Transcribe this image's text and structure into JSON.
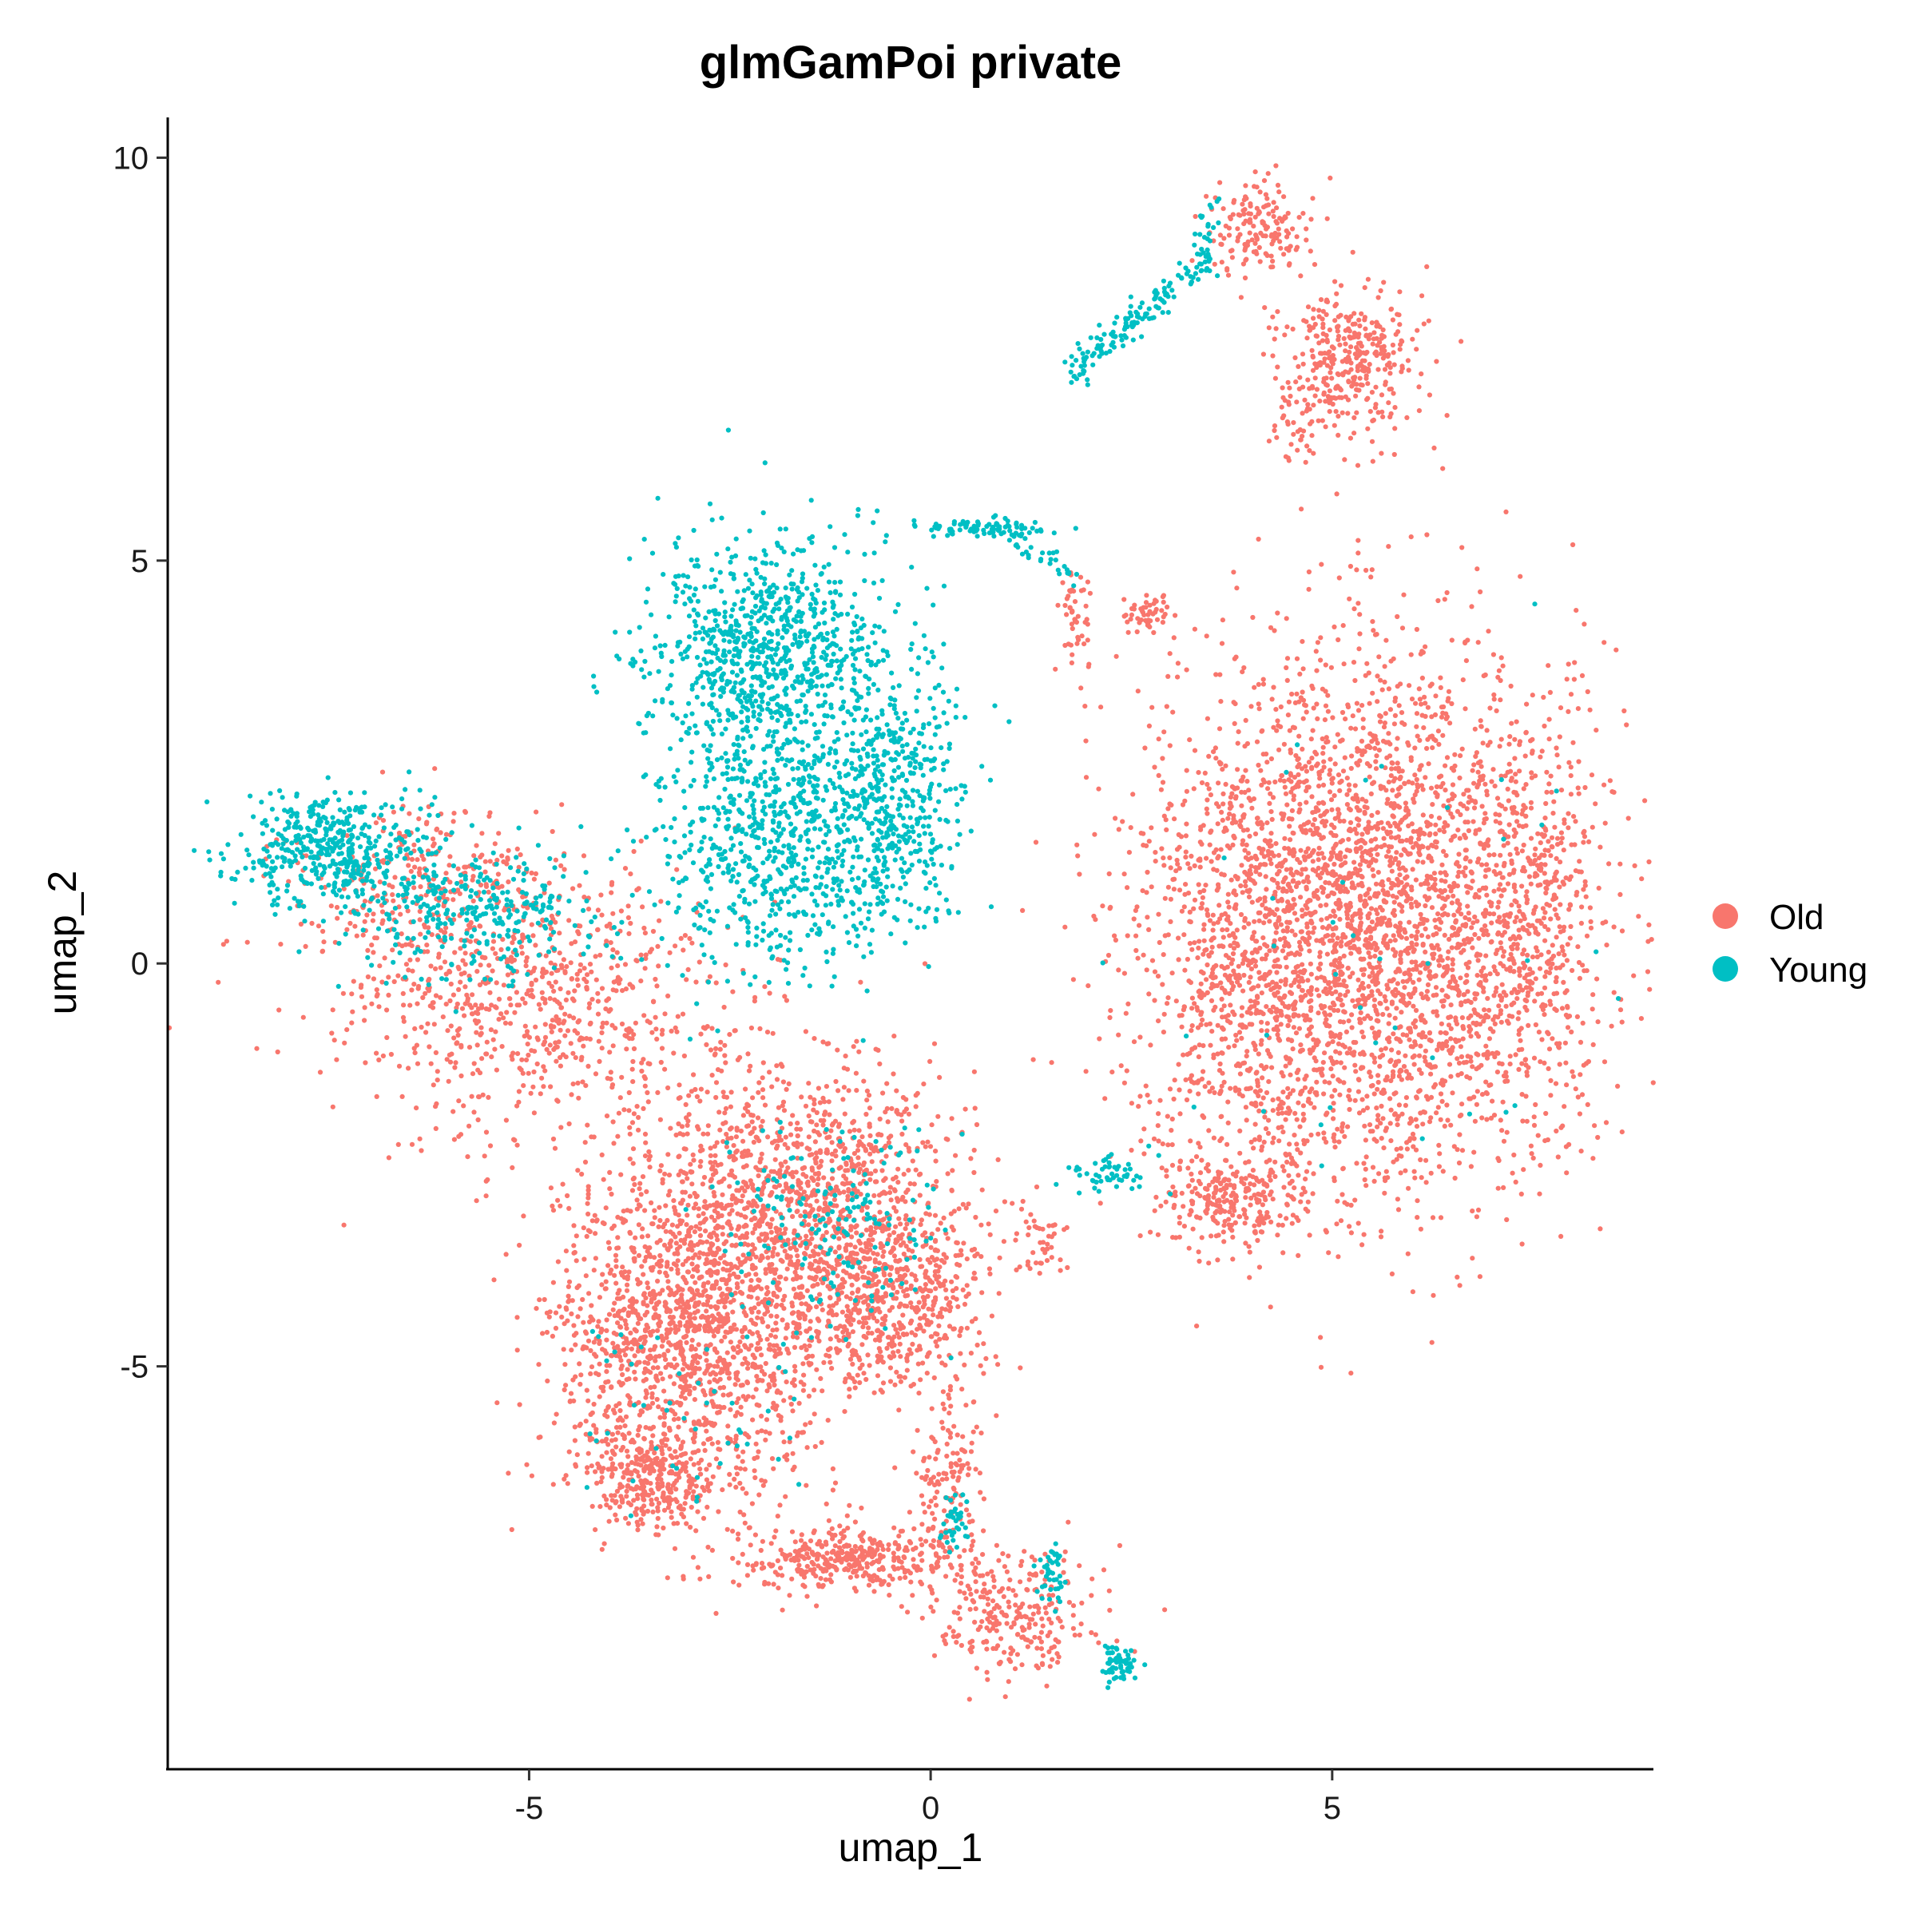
{
  "chart_data": {
    "type": "scatter",
    "title": "glmGamPoi private",
    "xlabel": "umap_1",
    "ylabel": "umap_2",
    "xlim": [
      -9.5,
      9.0
    ],
    "ylim": [
      -10,
      10.5
    ],
    "x_ticks": [
      -5,
      0,
      5
    ],
    "y_ticks": [
      -5,
      0,
      5,
      10
    ],
    "grid": false,
    "legend": {
      "placement": "right"
    },
    "colors": {
      "Old": "#F8766D",
      "Young": "#00BFC4"
    },
    "series": [
      {
        "name": "Old",
        "color": "#F8766D",
        "clusters": [
          {
            "cx": 5.5,
            "cy": 0.5,
            "sx": 1.55,
            "sy": 2.0,
            "n": 3200
          },
          {
            "cx": 7.6,
            "cy": 0.6,
            "sx": 0.45,
            "sy": 1.4,
            "n": 300
          },
          {
            "cx": 4.0,
            "cy": 0.3,
            "sx": 0.9,
            "sy": 1.6,
            "n": 500
          },
          {
            "cx": -3.0,
            "cy": -4.6,
            "sx": 1.0,
            "sy": 1.2,
            "n": 1500
          },
          {
            "cx": -1.6,
            "cy": -3.0,
            "sx": 1.2,
            "sy": 1.0,
            "n": 1200
          },
          {
            "cx": -0.5,
            "cy": -4.2,
            "sx": 0.7,
            "sy": 0.6,
            "n": 500
          },
          {
            "cx": -5.0,
            "cy": -0.5,
            "sx": 1.5,
            "sy": 1.0,
            "n": 800
          },
          {
            "cx": -6.5,
            "cy": 1.0,
            "sx": 1.0,
            "sy": 0.6,
            "n": 250
          },
          {
            "cx": -3.5,
            "cy": -6.4,
            "sx": 0.5,
            "sy": 0.35,
            "n": 300
          },
          {
            "cx": -1.0,
            "cy": -7.4,
            "sx": 0.9,
            "sy": 0.25,
            "n": 400
          },
          {
            "cx": 1.0,
            "cy": -8.1,
            "sx": 0.6,
            "sy": 0.45,
            "n": 250
          },
          {
            "cx": 0.2,
            "cy": -6.3,
            "sx": 0.25,
            "sy": 0.6,
            "n": 120
          },
          {
            "cx": 5.2,
            "cy": 7.5,
            "sx": 0.5,
            "sy": 0.55,
            "n": 350
          },
          {
            "cx": 4.5,
            "cy": 6.7,
            "sx": 0.2,
            "sy": 0.3,
            "n": 40
          },
          {
            "cx": 4.1,
            "cy": 9.1,
            "sx": 0.4,
            "sy": 0.35,
            "n": 160
          },
          {
            "cx": 2.7,
            "cy": 4.3,
            "sx": 0.15,
            "sy": 0.15,
            "n": 50
          },
          {
            "cx": 1.8,
            "cy": 4.3,
            "sx": 0.12,
            "sy": 0.4,
            "n": 50
          },
          {
            "cx": 3.8,
            "cy": -2.9,
            "sx": 0.55,
            "sy": 0.35,
            "n": 250
          },
          {
            "cx": 1.4,
            "cy": -3.5,
            "sx": 0.2,
            "sy": 0.3,
            "n": 40
          }
        ]
      },
      {
        "name": "Young",
        "color": "#00BFC4",
        "clusters": [
          {
            "cx": -2.0,
            "cy": 3.8,
            "sx": 0.9,
            "sy": 0.85,
            "n": 900
          },
          {
            "cx": -1.8,
            "cy": 1.5,
            "sx": 1.0,
            "sy": 0.9,
            "n": 800
          },
          {
            "cx": -0.4,
            "cy": 2.2,
            "sx": 0.45,
            "sy": 0.9,
            "n": 350
          },
          {
            "cx": -7.5,
            "cy": 1.4,
            "sx": 0.65,
            "sy": 0.4,
            "n": 450
          },
          {
            "cx": -5.7,
            "cy": 0.6,
            "sx": 0.9,
            "sy": 0.45,
            "n": 300
          },
          {
            "cx": 0.7,
            "cy": 5.4,
            "sx": 0.5,
            "sy": 0.07,
            "n": 90
          },
          {
            "cx": -1.2,
            "cy": -3.2,
            "sx": 0.8,
            "sy": 0.7,
            "n": 170
          },
          {
            "cx": 2.3,
            "cy": -8.7,
            "sx": 0.15,
            "sy": 0.12,
            "n": 60
          },
          {
            "cx": 1.5,
            "cy": -7.6,
            "sx": 0.1,
            "sy": 0.25,
            "n": 40
          },
          {
            "cx": 0.3,
            "cy": -6.9,
            "sx": 0.1,
            "sy": 0.3,
            "n": 35
          },
          {
            "cx": 2.2,
            "cy": -2.6,
            "sx": 0.3,
            "sy": 0.15,
            "n": 50
          },
          {
            "cx": -3.0,
            "cy": -5.5,
            "sx": 0.9,
            "sy": 0.8,
            "n": 50
          },
          {
            "cx": 5.5,
            "cy": 0.5,
            "sx": 1.5,
            "sy": 2.0,
            "n": 40
          }
        ],
        "streaks": [
          {
            "x0": 1.7,
            "y0": 7.3,
            "x1": 3.4,
            "y1": 8.7,
            "n": 140,
            "spread": 0.1
          },
          {
            "x0": 3.4,
            "y0": 8.7,
            "x1": 3.5,
            "y1": 9.4,
            "n": 30,
            "spread": 0.08
          },
          {
            "x0": 0.9,
            "y0": 5.3,
            "x1": 1.8,
            "y1": 4.8,
            "n": 30,
            "spread": 0.08
          }
        ]
      }
    ]
  }
}
